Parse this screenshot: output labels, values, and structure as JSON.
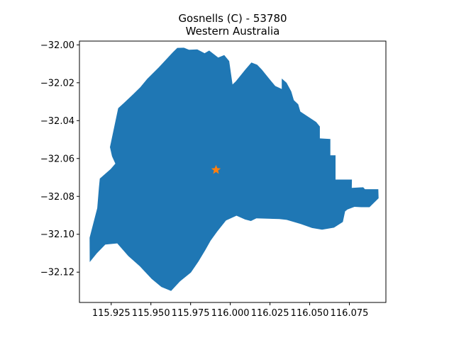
{
  "map": {
    "title_line1": "Gosnells (C) - 53780",
    "title_line2": "Western Australia",
    "region_color": "#1f77b4",
    "marker_color": "#ff7f0e",
    "marker_shape": "star",
    "marker_location": {
      "lon": 115.991,
      "lat": -32.066
    },
    "lon_range": [
      115.905,
      116.098
    ],
    "lat_range": [
      -32.136,
      -31.998
    ],
    "x_ticks": [
      {
        "value": 115.925,
        "label": "115.925"
      },
      {
        "value": 115.95,
        "label": "115.950"
      },
      {
        "value": 115.975,
        "label": "115.975"
      },
      {
        "value": 116.0,
        "label": "116.000"
      },
      {
        "value": 116.025,
        "label": "116.025"
      },
      {
        "value": 116.05,
        "label": "116.050"
      },
      {
        "value": 116.075,
        "label": "116.075"
      }
    ],
    "y_ticks": [
      {
        "value": -32.0,
        "label": "−32.00"
      },
      {
        "value": -32.02,
        "label": "−32.02"
      },
      {
        "value": -32.04,
        "label": "−32.04"
      },
      {
        "value": -32.06,
        "label": "−32.06"
      },
      {
        "value": -32.08,
        "label": "−32.08"
      },
      {
        "value": -32.1,
        "label": "−32.10"
      },
      {
        "value": -32.12,
        "label": "−32.12"
      }
    ],
    "boundary": [
      [
        115.9115,
        -32.1147
      ],
      [
        115.9114,
        -32.1018
      ],
      [
        115.9162,
        -32.0862
      ],
      [
        115.9173,
        -32.0751
      ],
      [
        115.9178,
        -32.0706
      ],
      [
        115.9246,
        -32.0656
      ],
      [
        115.9276,
        -32.0627
      ],
      [
        115.9255,
        -32.0588
      ],
      [
        115.9242,
        -32.054
      ],
      [
        115.9294,
        -32.0334
      ],
      [
        115.933,
        -32.0307
      ],
      [
        115.9389,
        -32.026
      ],
      [
        115.9433,
        -32.0224
      ],
      [
        115.9476,
        -32.018
      ],
      [
        115.9549,
        -32.0119
      ],
      [
        115.9636,
        -32.0041
      ],
      [
        115.9666,
        -32.0016
      ],
      [
        115.9708,
        -32.0015
      ],
      [
        115.974,
        -32.0026
      ],
      [
        115.9792,
        -32.0024
      ],
      [
        115.9838,
        -32.0044
      ],
      [
        115.9867,
        -32.003
      ],
      [
        115.9924,
        -32.0067
      ],
      [
        115.9962,
        -32.0054
      ],
      [
        115.9993,
        -32.0086
      ],
      [
        116.0005,
        -32.0157
      ],
      [
        116.0014,
        -32.0209
      ],
      [
        116.0034,
        -32.0193
      ],
      [
        116.0094,
        -32.0131
      ],
      [
        116.0133,
        -32.0093
      ],
      [
        116.0169,
        -32.0105
      ],
      [
        116.0198,
        -32.013
      ],
      [
        116.0244,
        -32.0178
      ],
      [
        116.0283,
        -32.0217
      ],
      [
        116.0324,
        -32.0233
      ],
      [
        116.0324,
        -32.0178
      ],
      [
        116.0354,
        -32.02
      ],
      [
        116.0384,
        -32.0246
      ],
      [
        116.04,
        -32.0292
      ],
      [
        116.0428,
        -32.0314
      ],
      [
        116.0441,
        -32.0352
      ],
      [
        116.0541,
        -32.0407
      ],
      [
        116.0564,
        -32.0431
      ],
      [
        116.0564,
        -32.0494
      ],
      [
        116.063,
        -32.0497
      ],
      [
        116.063,
        -32.0583
      ],
      [
        116.0663,
        -32.0583
      ],
      [
        116.0663,
        -32.0711
      ],
      [
        116.0766,
        -32.0711
      ],
      [
        116.0765,
        -32.0755
      ],
      [
        116.0837,
        -32.0752
      ],
      [
        116.0848,
        -32.0762
      ],
      [
        116.0932,
        -32.0762
      ],
      [
        116.0934,
        -32.081
      ],
      [
        116.0877,
        -32.0857
      ],
      [
        116.0825,
        -32.0857
      ],
      [
        116.0782,
        -32.0855
      ],
      [
        116.0738,
        -32.0869
      ],
      [
        116.0723,
        -32.0879
      ],
      [
        116.0709,
        -32.0935
      ],
      [
        116.0653,
        -32.0965
      ],
      [
        116.0578,
        -32.0976
      ],
      [
        116.0515,
        -32.0967
      ],
      [
        116.0444,
        -32.0946
      ],
      [
        116.0355,
        -32.0924
      ],
      [
        116.0309,
        -32.092
      ],
      [
        116.0164,
        -32.0916
      ],
      [
        116.013,
        -32.093
      ],
      [
        116.0093,
        -32.0922
      ],
      [
        116.0039,
        -32.0902
      ],
      [
        115.9973,
        -32.0927
      ],
      [
        115.9917,
        -32.0986
      ],
      [
        115.9876,
        -32.1034
      ],
      [
        115.9842,
        -32.1084
      ],
      [
        115.9799,
        -32.1144
      ],
      [
        115.9752,
        -32.1202
      ],
      [
        115.9683,
        -32.1249
      ],
      [
        115.9627,
        -32.1299
      ],
      [
        115.9566,
        -32.1278
      ],
      [
        115.9505,
        -32.1236
      ],
      [
        115.943,
        -32.1169
      ],
      [
        115.9358,
        -32.1115
      ],
      [
        115.9288,
        -32.1048
      ],
      [
        115.9213,
        -32.1054
      ],
      [
        115.916,
        -32.11
      ]
    ]
  }
}
